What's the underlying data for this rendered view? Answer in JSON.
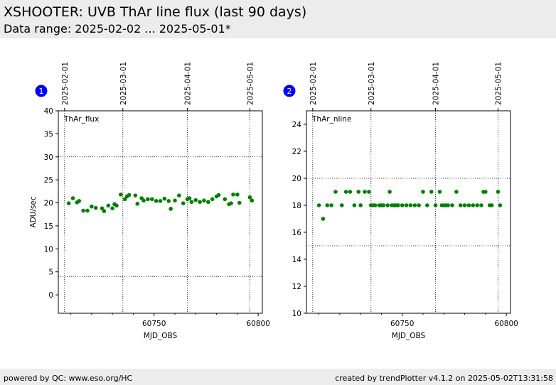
{
  "header": {
    "title": "XSHOOTER: UVB ThAr line flux (last 90 days)",
    "subtitle": "Data range: 2025-02-02 ... 2025-05-01*"
  },
  "footer": {
    "left": "powered by QC: www.eso.org/HC",
    "right": "created by trendPlotter v4.1.2 on 2025-05-02T13:31:58"
  },
  "colors": {
    "point": "#008000",
    "badge": "#0000ff",
    "header_bg": "#ececec"
  },
  "chart_data": [
    {
      "type": "scatter",
      "badge": "1",
      "label": "ThAr_flux",
      "xlabel": "MJD_OBS",
      "ylabel": "ADU/sec",
      "xlim": [
        60704,
        60802
      ],
      "ylim": [
        -4,
        40
      ],
      "xticks": [
        60750,
        60800
      ],
      "yticks": [
        0,
        5,
        10,
        15,
        20,
        25,
        30,
        35,
        40
      ],
      "hlines": [
        4,
        30
      ],
      "date_ticks": [
        {
          "label": "2025-02-01",
          "mjd": 60707
        },
        {
          "label": "2025-03-01",
          "mjd": 60735
        },
        {
          "label": "2025-04-01",
          "mjd": 60766
        },
        {
          "label": "2025-05-01",
          "mjd": 60796
        }
      ],
      "series": [
        {
          "x": [
            60709,
            60711,
            60713,
            60714,
            60716,
            60718,
            60720,
            60722,
            60725,
            60726,
            60728,
            60730,
            60731,
            60732,
            60734,
            60736,
            60737,
            60738,
            60741,
            60742,
            60744,
            60745,
            60747,
            60749,
            60751,
            60753,
            60755,
            60757,
            60758,
            60760,
            60762,
            60764,
            60766,
            60767,
            60768,
            60770,
            60772,
            60774,
            60776,
            60778,
            60780,
            60781,
            60784,
            60786,
            60787,
            60788,
            60790,
            60791,
            60796,
            60797
          ],
          "y": [
            19.9,
            21.0,
            20.1,
            20.4,
            18.3,
            18.3,
            19.2,
            18.9,
            18.8,
            18.2,
            19.4,
            18.8,
            19.7,
            19.4,
            21.8,
            20.8,
            21.4,
            21.7,
            21.6,
            19.8,
            21.0,
            20.5,
            20.8,
            20.8,
            20.4,
            20.4,
            20.9,
            20.4,
            18.7,
            20.5,
            21.6,
            19.9,
            20.8,
            21.0,
            20.2,
            20.6,
            20.2,
            20.5,
            20.2,
            20.8,
            21.4,
            21.7,
            20.8,
            19.7,
            19.9,
            21.8,
            21.8,
            20.0,
            21.2,
            20.5
          ]
        }
      ]
    },
    {
      "type": "scatter",
      "badge": "2",
      "label": "ThAr_nline",
      "xlabel": "MJD_OBS",
      "ylabel": "",
      "xlim": [
        60704,
        60802
      ],
      "ylim": [
        10,
        25
      ],
      "xticks": [
        60750,
        60800
      ],
      "yticks": [
        10,
        12,
        14,
        16,
        18,
        20,
        22,
        24
      ],
      "hlines": [
        15,
        20
      ],
      "date_ticks": [
        {
          "label": "2025-02-01",
          "mjd": 60707
        },
        {
          "label": "2025-03-01",
          "mjd": 60735
        },
        {
          "label": "2025-04-01",
          "mjd": 60766
        },
        {
          "label": "2025-05-01",
          "mjd": 60796
        }
      ],
      "series": [
        {
          "x": [
            60710,
            60712,
            60714,
            60716,
            60718,
            60721,
            60723,
            60725,
            60727,
            60729,
            60730,
            60732,
            60734,
            60735,
            60736,
            60737,
            60739,
            60740,
            60741,
            60743,
            60744,
            60745,
            60746,
            60747,
            60748,
            60750,
            60752,
            60754,
            60756,
            60758,
            60760,
            60762,
            60764,
            60766,
            60768,
            60769,
            60770,
            60771,
            60772,
            60774,
            60776,
            60778,
            60780,
            60782,
            60784,
            60786,
            60788,
            60789,
            60790,
            60792,
            60793,
            60796,
            60797
          ],
          "y": [
            18,
            17,
            18,
            18,
            19,
            18,
            19,
            19,
            18,
            19,
            18,
            19,
            19,
            18,
            18,
            18,
            18,
            18,
            18,
            18,
            19,
            18,
            18,
            18,
            18,
            18,
            18,
            18,
            18,
            18,
            19,
            18,
            19,
            18,
            19,
            18,
            18,
            18,
            18,
            18,
            19,
            18,
            18,
            18,
            18,
            18,
            18,
            19,
            19,
            18,
            18,
            19,
            18
          ]
        }
      ]
    }
  ]
}
